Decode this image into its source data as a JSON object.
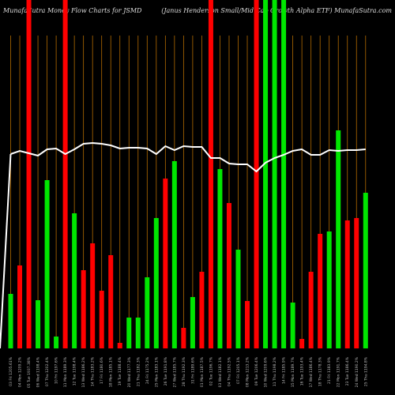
{
  "chart_data": {
    "type": "bar",
    "title": "MunafaSutra  Money Flow  Charts for JSMD",
    "subtitle": "(Janus Henderson Small/Mid Cap Growth Alpha ETF) MunafaSutra.com",
    "categories": [
      "03 Fri 1205.61%",
      "04 Mon 1209.2%",
      "05 Tue 1937.38%",
      "06 Wed 1198.4%",
      "07 Thu 1202.4%",
      "10 Fri 1197.6%",
      "11 Mon 1189.3%",
      "12 Tue 1198.4%",
      "13 Wed 1186.2%",
      "14 Thu 1183.2%",
      "17 Fri 1180.6%",
      "18 Mon 1185.1%",
      "19 Tue 1188.4%",
      "20 Wed 1177.3%",
      "21 Thu 1182.3%",
      "24 Fri 1175.2%",
      "25 Mon 1183.1%",
      "26 Tue 1191.8%",
      "27 Wed 1185.7%",
      "28 Thu 1192.3%",
      "31 Fri 1189.6%",
      "01 Mon 1187.5%",
      "02 Tue 1196.7%",
      "03 Wed 1182.1%",
      "04 Thu 1192.5%",
      "07 Fri 1205.1%",
      "08 Mon 1213.2%",
      "09 Tue 1206.4%",
      "10 Wed 1209.6%",
      "11 Thu 1198.2%",
      "14 Fri 1185.9%",
      "15 Mon 1189.7%",
      "16 Tue 1193.4%",
      "17 Wed 1186.4%",
      "18 Thu 1178.3%",
      "21 Fri 1183.9%",
      "22 Mon 1191.7%",
      "23 Tue 1186.4%",
      "24 Wed 1190.2%",
      "25 Thu 1194.8%"
    ],
    "series": [
      {
        "name": "Money Flow",
        "values": [
          69,
          105,
          441,
          61,
          213,
          15,
          441,
          171,
          99,
          133,
          73,
          118,
          7,
          39,
          39,
          90,
          165,
          215,
          237,
          26,
          65,
          97,
          441,
          227,
          184,
          125,
          60,
          441,
          441,
          441,
          441,
          58,
          12,
          97,
          145,
          148,
          276,
          162,
          165,
          197
        ],
        "colors": [
          "#00e600",
          "#ff0000",
          "#ff0000",
          "#00e600",
          "#00e600",
          "#00e600",
          "#ff0000",
          "#00e600",
          "#ff0000",
          "#ff0000",
          "#ff0000",
          "#ff0000",
          "#ff0000",
          "#00e600",
          "#00e600",
          "#00e600",
          "#00e600",
          "#ff0000",
          "#00e600",
          "#ff0000",
          "#00e600",
          "#ff0000",
          "#ff0000",
          "#00e600",
          "#ff0000",
          "#00e600",
          "#ff0000",
          "#ff0000",
          "#00e600",
          "#00e600",
          "#00e600",
          "#00e600",
          "#ff0000",
          "#ff0000",
          "#ff0000",
          "#00e600",
          "#00e600",
          "#ff0000",
          "#ff0000",
          "#00e600"
        ]
      },
      {
        "name": "Price",
        "type": "line",
        "color": "#ffffff",
        "values": [
          246,
          250,
          247,
          244,
          252,
          253,
          246,
          252,
          259,
          260,
          259,
          257,
          253,
          254,
          254,
          253,
          246,
          256,
          251,
          256,
          255,
          255,
          241,
          241,
          234,
          233,
          233,
          224,
          235,
          241,
          245,
          250,
          252,
          245,
          245,
          251,
          250,
          251,
          251,
          252
        ]
      }
    ],
    "ylim": [
      0,
      441
    ]
  }
}
